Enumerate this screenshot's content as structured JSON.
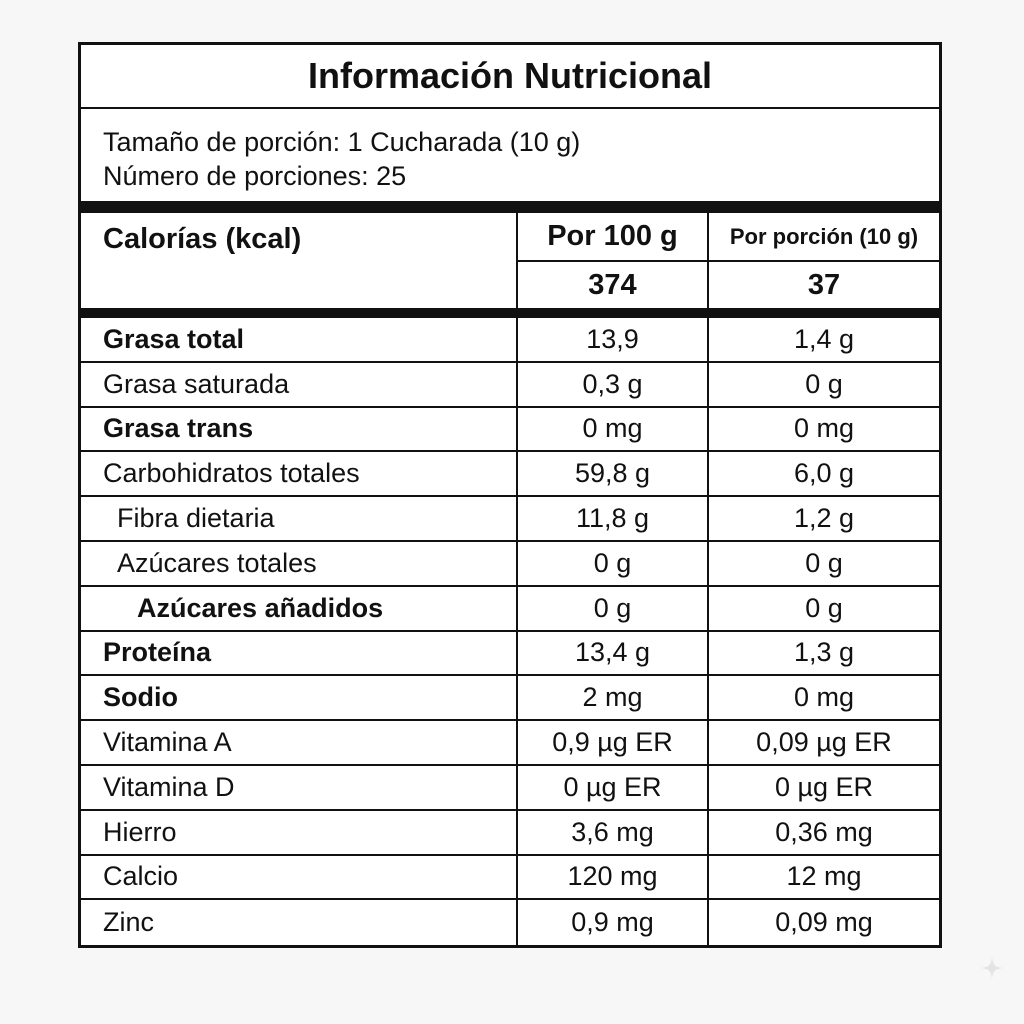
{
  "label": {
    "title": "Información Nutricional",
    "serving_size": "Tamaño de porción: 1 Cucharada (10 g)",
    "servings_per_container": "Número de porciones: 25",
    "calories_label": "Calorías (kcal)",
    "col_per_100": "Por 100 g",
    "col_per_serving": "Por porción (10 g)",
    "calories_per_100": "374",
    "calories_per_serving": "37",
    "rows": [
      {
        "name": "Grasa total",
        "per100": "13,9",
        "perServing": "1,4 g",
        "bold": true,
        "indent": 0
      },
      {
        "name": "Grasa saturada",
        "per100": "0,3 g",
        "perServing": "0 g",
        "bold": false,
        "indent": 0
      },
      {
        "name": "Grasa trans",
        "per100": "0 mg",
        "perServing": "0 mg",
        "bold": true,
        "indent": 0
      },
      {
        "name": "Carbohidratos totales",
        "per100": "59,8 g",
        "perServing": "6,0 g",
        "bold": false,
        "indent": 0
      },
      {
        "name": "Fibra dietaria",
        "per100": "11,8 g",
        "perServing": "1,2 g",
        "bold": false,
        "indent": 1
      },
      {
        "name": "Azúcares totales",
        "per100": "0 g",
        "perServing": "0 g",
        "bold": false,
        "indent": 1
      },
      {
        "name": "Azúcares añadidos",
        "per100": "0 g",
        "perServing": "0 g",
        "bold": true,
        "indent": 2
      },
      {
        "name": "Proteína",
        "per100": "13,4 g",
        "perServing": "1,3 g",
        "bold": true,
        "indent": 0
      },
      {
        "name": "Sodio",
        "per100": "2 mg",
        "perServing": "0 mg",
        "bold": true,
        "indent": 0
      },
      {
        "name": "Vitamina A",
        "per100": "0,9 µg ER",
        "perServing": "0,09 µg ER",
        "bold": false,
        "indent": 0
      },
      {
        "name": "Vitamina D",
        "per100": "0 µg ER",
        "perServing": "0 µg ER",
        "bold": false,
        "indent": 0
      },
      {
        "name": "Hierro",
        "per100": "3,6 mg",
        "perServing": "0,36 mg",
        "bold": false,
        "indent": 0
      },
      {
        "name": "Calcio",
        "per100": "120 mg",
        "perServing": "12 mg",
        "bold": false,
        "indent": 0
      },
      {
        "name": "Zinc",
        "per100": "0,9 mg",
        "perServing": "0,09 mg",
        "bold": false,
        "indent": 0
      }
    ]
  },
  "colors": {
    "background": "#f7f7f7",
    "panel": "#ffffff",
    "ink": "#111111"
  },
  "icons": {
    "watermark": "sparkle-icon"
  }
}
